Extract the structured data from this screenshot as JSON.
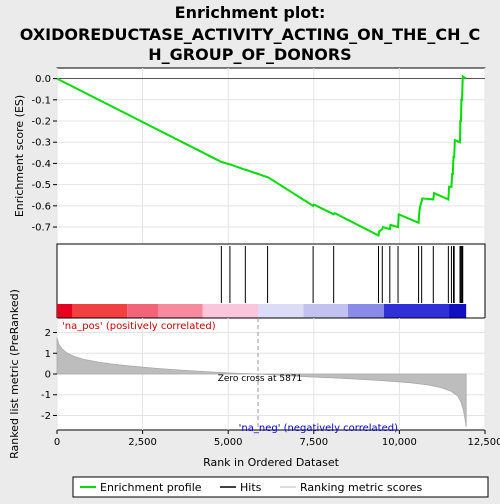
{
  "chart_data": {
    "type": "line",
    "title_lines": [
      "Enrichment plot:",
      "OXIDOREDUCTASE_ACTIVITY_ACTING_ON_THE_CH_C",
      "H_GROUP_OF_DONORS"
    ],
    "top_panel": {
      "ylabel": "Enrichment score (ES)",
      "ylim": [
        -0.78,
        0.05
      ],
      "yticks": [
        0.0,
        -0.1,
        -0.2,
        -0.3,
        -0.4,
        -0.5,
        -0.6,
        -0.7
      ],
      "ytick_labels": [
        "0.0",
        "-0.1",
        "-0.2",
        "-0.3",
        "-0.4",
        "-0.5",
        "-0.6",
        "-0.7"
      ],
      "series": [
        {
          "name": "Enrichment profile",
          "color": "#00dd00",
          "x": [
            0,
            4800,
            4810,
            5050,
            5060,
            5500,
            5510,
            6150,
            6160,
            7480,
            7500,
            7530,
            8080,
            8100,
            8130,
            9390,
            9410,
            9500,
            9520,
            9720,
            9740,
            9960,
            9980,
            10560,
            10570,
            10590,
            10610,
            10650,
            10670,
            10990,
            11010,
            11430,
            11450,
            11520,
            11540,
            11560,
            11580,
            11600,
            11620,
            11770,
            11780,
            11800,
            11810,
            11830,
            11850,
            11900,
            11950
          ],
          "y": [
            0.0,
            -0.393,
            -0.393,
            -0.405,
            -0.405,
            -0.43,
            -0.43,
            -0.465,
            -0.465,
            -0.6,
            -0.595,
            -0.596,
            -0.64,
            -0.635,
            -0.636,
            -0.74,
            -0.72,
            -0.71,
            -0.7,
            -0.71,
            -0.69,
            -0.7,
            -0.64,
            -0.68,
            -0.65,
            -0.62,
            -0.6,
            -0.58,
            -0.565,
            -0.57,
            -0.54,
            -0.57,
            -0.51,
            -0.51,
            -0.45,
            -0.45,
            -0.37,
            -0.37,
            -0.29,
            -0.3,
            -0.2,
            -0.2,
            -0.1,
            -0.1,
            0.01,
            0.005,
            0.0
          ]
        }
      ]
    },
    "hits": {
      "name": "Hits",
      "x": [
        4800,
        5050,
        5500,
        6150,
        7480,
        8080,
        9390,
        9500,
        9720,
        9960,
        10560,
        10650,
        10990,
        11430,
        11520,
        11580,
        11600,
        11770,
        11800,
        11830,
        11850
      ]
    },
    "ranking_colorbar": {
      "label_pos": "'na_pos' (positively correlated)",
      "label_neg": "'na_neg' (negatively correlated)",
      "pos_color": "#cc0000",
      "neg_color": "#0000cc",
      "segments": [
        {
          "from": 0,
          "to": 450,
          "color": "#e8001f"
        },
        {
          "from": 450,
          "to": 2050,
          "color": "#f04040"
        },
        {
          "from": 2050,
          "to": 2950,
          "color": "#f46478"
        },
        {
          "from": 2950,
          "to": 4250,
          "color": "#f88aa0"
        },
        {
          "from": 4250,
          "to": 5871,
          "color": "#fbc6dc"
        },
        {
          "from": 5871,
          "to": 7200,
          "color": "#dcdcf6"
        },
        {
          "from": 7200,
          "to": 8500,
          "color": "#c2c2f0"
        },
        {
          "from": 8500,
          "to": 9550,
          "color": "#8a8ae8"
        },
        {
          "from": 9550,
          "to": 11450,
          "color": "#3030d8"
        },
        {
          "from": 11450,
          "to": 11950,
          "color": "#1010c0"
        }
      ]
    },
    "bottom_panel": {
      "ylabel": "Ranked list metric (PreRanked)",
      "xlabel": "Rank in Ordered Dataset",
      "ylim": [
        -2.7,
        2.7
      ],
      "yticks": [
        2,
        1,
        0,
        -1,
        -2
      ],
      "ytick_labels": [
        "2",
        "1",
        "0",
        "-1",
        "-2"
      ],
      "xticks": [
        0,
        2500,
        5000,
        7500,
        10000,
        12500
      ],
      "xtick_labels": [
        "0",
        "2,500",
        "5,000",
        "7,500",
        "10,000",
        "12,500"
      ],
      "xlim": [
        0,
        12500
      ],
      "zero_cross_text": "Zero cross at 5871",
      "zero_cross_x": 5871,
      "metric": {
        "name": "Ranking metric scores",
        "x": [
          0,
          50,
          150,
          300,
          500,
          800,
          1200,
          1700,
          2300,
          3000,
          3800,
          4600,
          5300,
          5871,
          6500,
          7300,
          8200,
          9000,
          9700,
          10300,
          10800,
          11200,
          11500,
          11700,
          11800,
          11870,
          11920,
          11950
        ],
        "y": [
          1.75,
          1.45,
          1.2,
          1.0,
          0.85,
          0.7,
          0.58,
          0.46,
          0.36,
          0.26,
          0.17,
          0.09,
          0.03,
          0.0,
          -0.06,
          -0.13,
          -0.2,
          -0.27,
          -0.34,
          -0.42,
          -0.52,
          -0.65,
          -0.82,
          -1.05,
          -1.35,
          -1.75,
          -2.2,
          -2.55
        ]
      }
    },
    "legend": [
      "Enrichment profile",
      "Hits",
      "Ranking metric scores"
    ]
  }
}
